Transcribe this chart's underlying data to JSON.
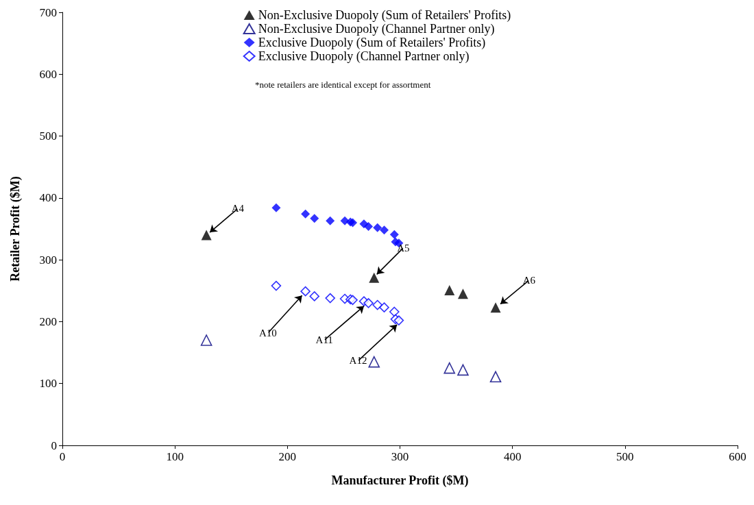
{
  "chart_data": {
    "type": "scatter",
    "xlabel": "Manufacturer Profit ($M)",
    "ylabel": "Retailer Profit ($M)",
    "xlim": [
      0,
      600
    ],
    "xticks": [
      0,
      100,
      200,
      300,
      400,
      500,
      600
    ],
    "ylim": [
      0,
      700
    ],
    "yticks": [
      0,
      100,
      200,
      300,
      400,
      500,
      600,
      700
    ],
    "grid": false,
    "legend": "top",
    "series": [
      {
        "name": "Non-Exclusive Duopoly (Sum of Retailers' Profits)",
        "color": "#000000",
        "marker": "triangle",
        "x": [
          128,
          277,
          344,
          356,
          385
        ],
        "values": [
          340,
          271,
          251,
          245,
          223
        ]
      },
      {
        "name": "Non-Exclusive Duopoly (Channel Partner only)",
        "color": "#000080",
        "marker": "triangle-open",
        "x": [
          128,
          277,
          344,
          356,
          385
        ],
        "values": [
          170,
          135,
          125,
          122,
          111
        ]
      },
      {
        "name": "Exclusive Duopoly (Sum of Retailers' Profits)",
        "color": "#0000ff",
        "marker": "diamond",
        "x": [
          190,
          216,
          224,
          238,
          251,
          256,
          258,
          268,
          272,
          280,
          286,
          295,
          296,
          299
        ],
        "values": [
          384,
          374,
          367,
          363,
          363,
          361,
          360,
          358,
          354,
          352,
          348,
          341,
          329,
          327
        ]
      },
      {
        "name": "Exclusive Duopoly (Channel Partner only)",
        "color": "#0000ff",
        "marker": "diamond-open",
        "x": [
          190,
          216,
          224,
          238,
          251,
          256,
          258,
          268,
          272,
          280,
          286,
          295,
          296,
          299
        ],
        "values": [
          258,
          249,
          241,
          238,
          237,
          236,
          235,
          233,
          230,
          227,
          223,
          216,
          204,
          202
        ]
      }
    ],
    "annotations": [
      "*note retailers are identical except for assortment",
      {
        "text": "A4",
        "x": 128,
        "y": 340
      },
      {
        "text": "A5",
        "x": 277,
        "y": 271
      },
      {
        "text": "A6",
        "x": 385,
        "y": 223
      },
      {
        "text": "A10",
        "x": 216,
        "y": 249
      },
      {
        "text": "A11",
        "x": 268,
        "y": 233
      },
      {
        "text": "A12",
        "x": 298,
        "y": 204
      }
    ]
  }
}
